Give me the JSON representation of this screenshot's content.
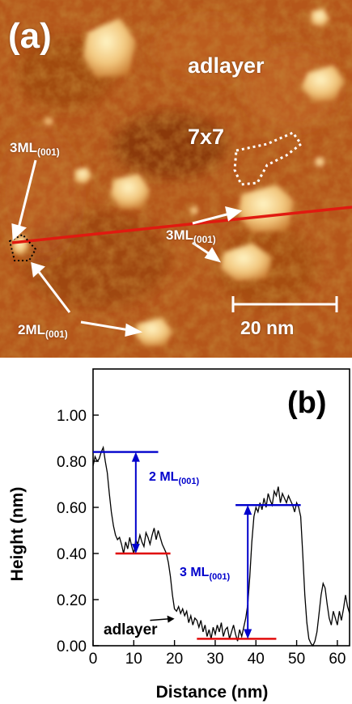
{
  "panel_a": {
    "panel_label": "(a)",
    "labels": {
      "adlayer": "adlayer",
      "reconstruction": "7x7",
      "ml3_left_main": "3ML",
      "ml3_left_sub": "(001)",
      "ml3_right_main": "3ML",
      "ml3_right_sub": "(001)",
      "ml2_main": "2ML",
      "ml2_sub": "(001)",
      "scale_bar": "20 nm"
    },
    "colors": {
      "profile_line": "#e01a10",
      "annotation": "#ffffff"
    }
  },
  "panel_b": {
    "panel_label": "(b)",
    "annotations": {
      "ml2_main": "2 ML",
      "ml2_sub": "(001)",
      "ml3_main": "3 ML",
      "ml3_sub": "(001)",
      "adlayer": "adlayer"
    },
    "colors": {
      "level_high": "#0000cc",
      "level_low": "#e00000",
      "arrows": "#0000cc",
      "trace": "#000000"
    }
  },
  "chart_data": {
    "type": "line",
    "title": "",
    "xlabel": "Distance (nm)",
    "ylabel": "Height (nm)",
    "xlim": [
      0,
      63
    ],
    "ylim": [
      0.0,
      1.2
    ],
    "xticks": [
      0,
      10,
      20,
      30,
      40,
      50,
      60
    ],
    "yticks": [
      0.0,
      0.2,
      0.4,
      0.6,
      0.8,
      1.0
    ],
    "ytick_labels": [
      "0.00",
      "0.20",
      "0.40",
      "0.60",
      "0.80",
      "1.00"
    ],
    "grid": false,
    "series": [
      {
        "x": [
          0,
          0.5,
          1,
          1.5,
          2,
          2.5,
          3,
          3.5,
          4,
          4.5,
          5,
          5.5,
          6,
          6.5,
          7,
          7.5,
          8,
          8.5,
          9,
          9.5,
          10,
          10.5,
          11,
          11.5,
          12,
          12.5,
          13,
          13.5,
          14,
          14.5,
          15,
          15.5,
          16,
          16.5,
          17,
          17.5,
          18,
          18.5,
          19,
          19.5,
          20,
          20.5,
          21,
          21.5,
          22,
          22.5,
          23,
          23.5,
          24,
          24.5,
          25,
          25.5,
          26,
          26.5,
          27,
          27.5,
          28,
          28.5,
          29,
          29.5,
          30,
          30.5,
          31,
          31.5,
          32,
          32.5,
          33,
          33.5,
          34,
          34.5,
          35,
          35.5,
          36,
          36.5,
          37,
          37.5,
          38,
          38.5,
          39,
          39.5,
          40,
          40.5,
          41,
          41.5,
          42,
          42.5,
          43,
          43.5,
          44,
          44.5,
          45,
          45.5,
          46,
          46.5,
          47,
          47.5,
          48,
          48.5,
          49,
          49.5,
          50,
          50.5,
          51,
          51.5,
          52,
          52.5,
          53,
          53.5,
          54,
          54.5,
          55,
          55.5,
          56,
          56.5,
          57,
          57.5,
          58,
          58.5,
          59,
          59.5,
          60,
          60.5,
          61,
          61.5,
          62,
          62.5,
          63
        ],
        "y": [
          0.78,
          0.82,
          0.8,
          0.81,
          0.84,
          0.86,
          0.8,
          0.75,
          0.66,
          0.58,
          0.52,
          0.48,
          0.46,
          0.47,
          0.44,
          0.4,
          0.45,
          0.42,
          0.47,
          0.43,
          0.4,
          0.46,
          0.44,
          0.48,
          0.45,
          0.43,
          0.49,
          0.47,
          0.44,
          0.48,
          0.51,
          0.46,
          0.5,
          0.47,
          0.44,
          0.42,
          0.4,
          0.36,
          0.3,
          0.22,
          0.16,
          0.15,
          0.17,
          0.14,
          0.16,
          0.13,
          0.15,
          0.1,
          0.13,
          0.09,
          0.12,
          0.11,
          0.08,
          0.11,
          0.06,
          0.09,
          0.04,
          0.07,
          0.03,
          0.08,
          0.05,
          0.09,
          0.06,
          0.1,
          0.04,
          0.07,
          0.08,
          0.03,
          0.06,
          0.09,
          0.05,
          0.02,
          0.07,
          0.04,
          0.08,
          0.12,
          0.18,
          0.3,
          0.45,
          0.56,
          0.6,
          0.58,
          0.62,
          0.59,
          0.64,
          0.6,
          0.66,
          0.63,
          0.61,
          0.67,
          0.65,
          0.69,
          0.62,
          0.66,
          0.64,
          0.62,
          0.65,
          0.63,
          0.61,
          0.58,
          0.62,
          0.6,
          0.56,
          0.4,
          0.22,
          0.1,
          0.03,
          0.01,
          0.0,
          0.02,
          0.06,
          0.14,
          0.22,
          0.27,
          0.25,
          0.18,
          0.12,
          0.09,
          0.15,
          0.12,
          0.09,
          0.15,
          0.11,
          0.16,
          0.22,
          0.17,
          0.14
        ]
      }
    ],
    "reference_lines": [
      {
        "color": "blue",
        "y": 0.84,
        "x": [
          0,
          16
        ]
      },
      {
        "color": "red",
        "y": 0.4,
        "x": [
          5.5,
          19
        ]
      },
      {
        "color": "blue",
        "y": 0.61,
        "x": [
          35,
          51
        ]
      },
      {
        "color": "red",
        "y": 0.03,
        "x": [
          25.5,
          45
        ]
      }
    ]
  }
}
